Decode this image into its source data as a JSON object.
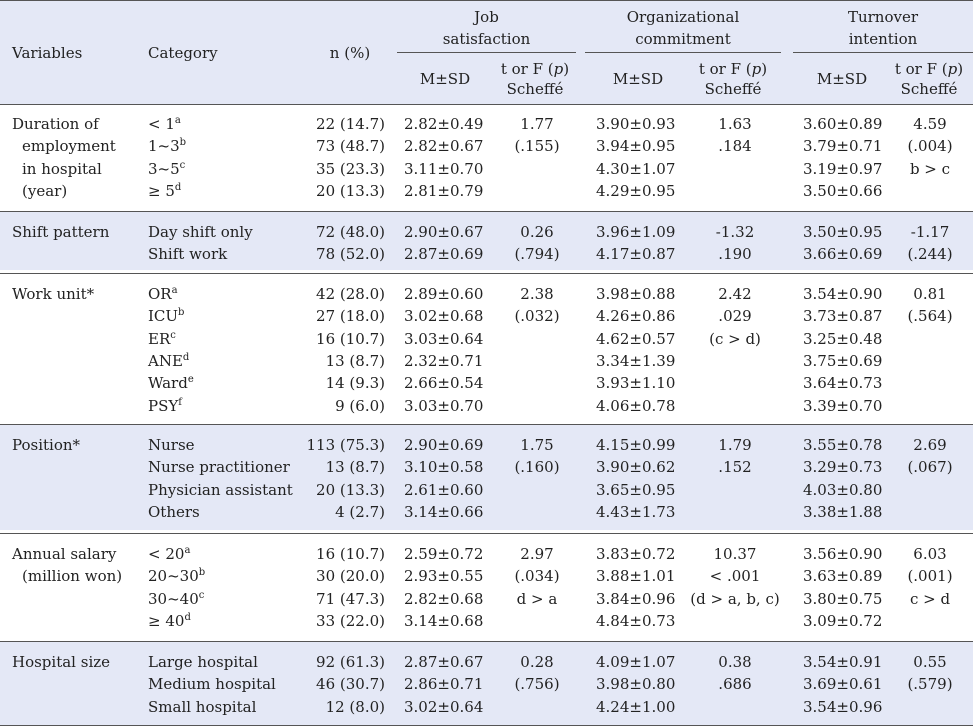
{
  "header": {
    "variables": "Variables",
    "category": "Category",
    "n": "n (%)",
    "groups": [
      {
        "line1": "Job",
        "line2": "satisfaction"
      },
      {
        "line1": "Organizational",
        "line2": "commitment"
      },
      {
        "line1": "Turnover",
        "line2": "intention"
      }
    ],
    "msd": "M±SD",
    "stat_line1": "t or F (",
    "stat_p": "p",
    "stat_close": ")",
    "stat_line2": "Scheffé"
  },
  "sections": [
    {
      "variable": [
        "Duration of",
        "employment",
        "in hospital",
        "(year)"
      ],
      "rows": [
        {
          "cat": "< 1",
          "sup": "a",
          "n": "22 (14.7)",
          "js": "2.82±0.49",
          "oc": "3.90±0.93",
          "ti": "3.60±0.89"
        },
        {
          "cat": "1~3",
          "sup": "b",
          "n": "73 (48.7)",
          "js": "2.82±0.67",
          "oc": "3.94±0.95",
          "ti": "3.79±0.71"
        },
        {
          "cat": "3~5",
          "sup": "c",
          "n": "35 (23.3)",
          "js": "3.11±0.70",
          "oc": "4.30±1.07",
          "ti": "3.19±0.97"
        },
        {
          "cat": "≥ 5",
          "sup": "d",
          "n": "20 (13.3)",
          "js": "2.81±0.79",
          "oc": "4.29±0.95",
          "ti": "3.50±0.66"
        }
      ],
      "js_stat": [
        "1.77",
        "(.155)"
      ],
      "oc_stat": [
        "1.63",
        ".184"
      ],
      "ti_stat": [
        "4.59",
        "(.004)",
        "b > c"
      ]
    },
    {
      "variable": [
        "Shift pattern"
      ],
      "rows": [
        {
          "cat": "Day shift only",
          "sup": "",
          "n": "72 (48.0)",
          "js": "2.90±0.67",
          "oc": "3.96±1.09",
          "ti": "3.50±0.95"
        },
        {
          "cat": "Shift work",
          "sup": "",
          "n": "78 (52.0)",
          "js": "2.87±0.69",
          "oc": "4.17±0.87",
          "ti": "3.66±0.69"
        }
      ],
      "js_stat": [
        "0.26",
        "(.794)"
      ],
      "oc_stat": [
        "-1.32",
        ".190"
      ],
      "ti_stat": [
        "-1.17",
        "(.244)"
      ]
    },
    {
      "variable": [
        "Work unit*"
      ],
      "rows": [
        {
          "cat": "OR",
          "sup": "a",
          "n": "42 (28.0)",
          "js": "2.89±0.60",
          "oc": "3.98±0.88",
          "ti": "3.54±0.90"
        },
        {
          "cat": "ICU",
          "sup": "b",
          "n": "27 (18.0)",
          "js": "3.02±0.68",
          "oc": "4.26±0.86",
          "ti": "3.73±0.87"
        },
        {
          "cat": "ER",
          "sup": "c",
          "n": "16 (10.7)",
          "js": "3.03±0.64",
          "oc": "4.62±0.57",
          "ti": "3.25±0.48"
        },
        {
          "cat": "ANE",
          "sup": "d",
          "n": "13 (8.7)",
          "js": "2.32±0.71",
          "oc": "3.34±1.39",
          "ti": "3.75±0.69"
        },
        {
          "cat": "Ward",
          "sup": "e",
          "n": "14 (9.3)",
          "js": "2.66±0.54",
          "oc": "3.93±1.10",
          "ti": "3.64±0.73"
        },
        {
          "cat": "PSY",
          "sup": "f",
          "n": "9 (6.0)",
          "js": "3.03±0.70",
          "oc": "4.06±0.78",
          "ti": "3.39±0.70"
        }
      ],
      "js_stat": [
        "2.38",
        "(.032)"
      ],
      "oc_stat": [
        "2.42",
        ".029",
        "(c > d)"
      ],
      "ti_stat": [
        "0.81",
        "(.564)"
      ]
    },
    {
      "variable": [
        "Position*"
      ],
      "rows": [
        {
          "cat": "Nurse",
          "sup": "",
          "n": "113 (75.3)",
          "js": "2.90±0.69",
          "oc": "4.15±0.99",
          "ti": "3.55±0.78"
        },
        {
          "cat": "Nurse practitioner",
          "sup": "",
          "n": "13 (8.7)",
          "js": "3.10±0.58",
          "oc": "3.90±0.62",
          "ti": "3.29±0.73"
        },
        {
          "cat": "Physician assistant",
          "sup": "",
          "n": "20 (13.3)",
          "js": "2.61±0.60",
          "oc": "3.65±0.95",
          "ti": "4.03±0.80"
        },
        {
          "cat": "Others",
          "sup": "",
          "n": "4 (2.7)",
          "js": "3.14±0.66",
          "oc": "4.43±1.73",
          "ti": "3.38±1.88"
        }
      ],
      "js_stat": [
        "1.75",
        "(.160)"
      ],
      "oc_stat": [
        "1.79",
        ".152"
      ],
      "ti_stat": [
        "2.69",
        "(.067)"
      ]
    },
    {
      "variable": [
        "Annual salary",
        "(million won)"
      ],
      "rows": [
        {
          "cat": "< 20",
          "sup": "a",
          "n": "16 (10.7)",
          "js": "2.59±0.72",
          "oc": "3.83±0.72",
          "ti": "3.56±0.90"
        },
        {
          "cat": "20~30",
          "sup": "b",
          "n": "30 (20.0)",
          "js": "2.93±0.55",
          "oc": "3.88±1.01",
          "ti": "3.63±0.89"
        },
        {
          "cat": "30~40",
          "sup": "c",
          "n": "71 (47.3)",
          "js": "2.82±0.68",
          "oc": "3.84±0.96",
          "ti": "3.80±0.75"
        },
        {
          "cat": "≥ 40",
          "sup": "d",
          "n": "33 (22.0)",
          "js": "3.14±0.68",
          "oc": "4.84±0.73",
          "ti": "3.09±0.72"
        }
      ],
      "js_stat": [
        "2.97",
        "(.034)",
        "d > a"
      ],
      "oc_stat": [
        "10.37",
        "< .001",
        "(d > a, b, c)"
      ],
      "ti_stat": [
        "6.03",
        "(.001)",
        "c > d"
      ]
    },
    {
      "variable": [
        "Hospital size"
      ],
      "rows": [
        {
          "cat": "Large hospital",
          "sup": "",
          "n": "92 (61.3)",
          "js": "2.87±0.67",
          "oc": "4.09±1.07",
          "ti": "3.54±0.91"
        },
        {
          "cat": "Medium hospital",
          "sup": "",
          "n": "46 (30.7)",
          "js": "2.86±0.71",
          "oc": "3.98±0.80",
          "ti": "3.69±0.61"
        },
        {
          "cat": "Small hospital",
          "sup": "",
          "n": "12 (8.0)",
          "js": "3.02±0.64",
          "oc": "4.24±1.00",
          "ti": "3.54±0.96"
        }
      ],
      "js_stat": [
        "0.28",
        "(.756)"
      ],
      "oc_stat": [
        "0.38",
        ".686"
      ],
      "ti_stat": [
        "0.55",
        "(.579)"
      ]
    }
  ]
}
